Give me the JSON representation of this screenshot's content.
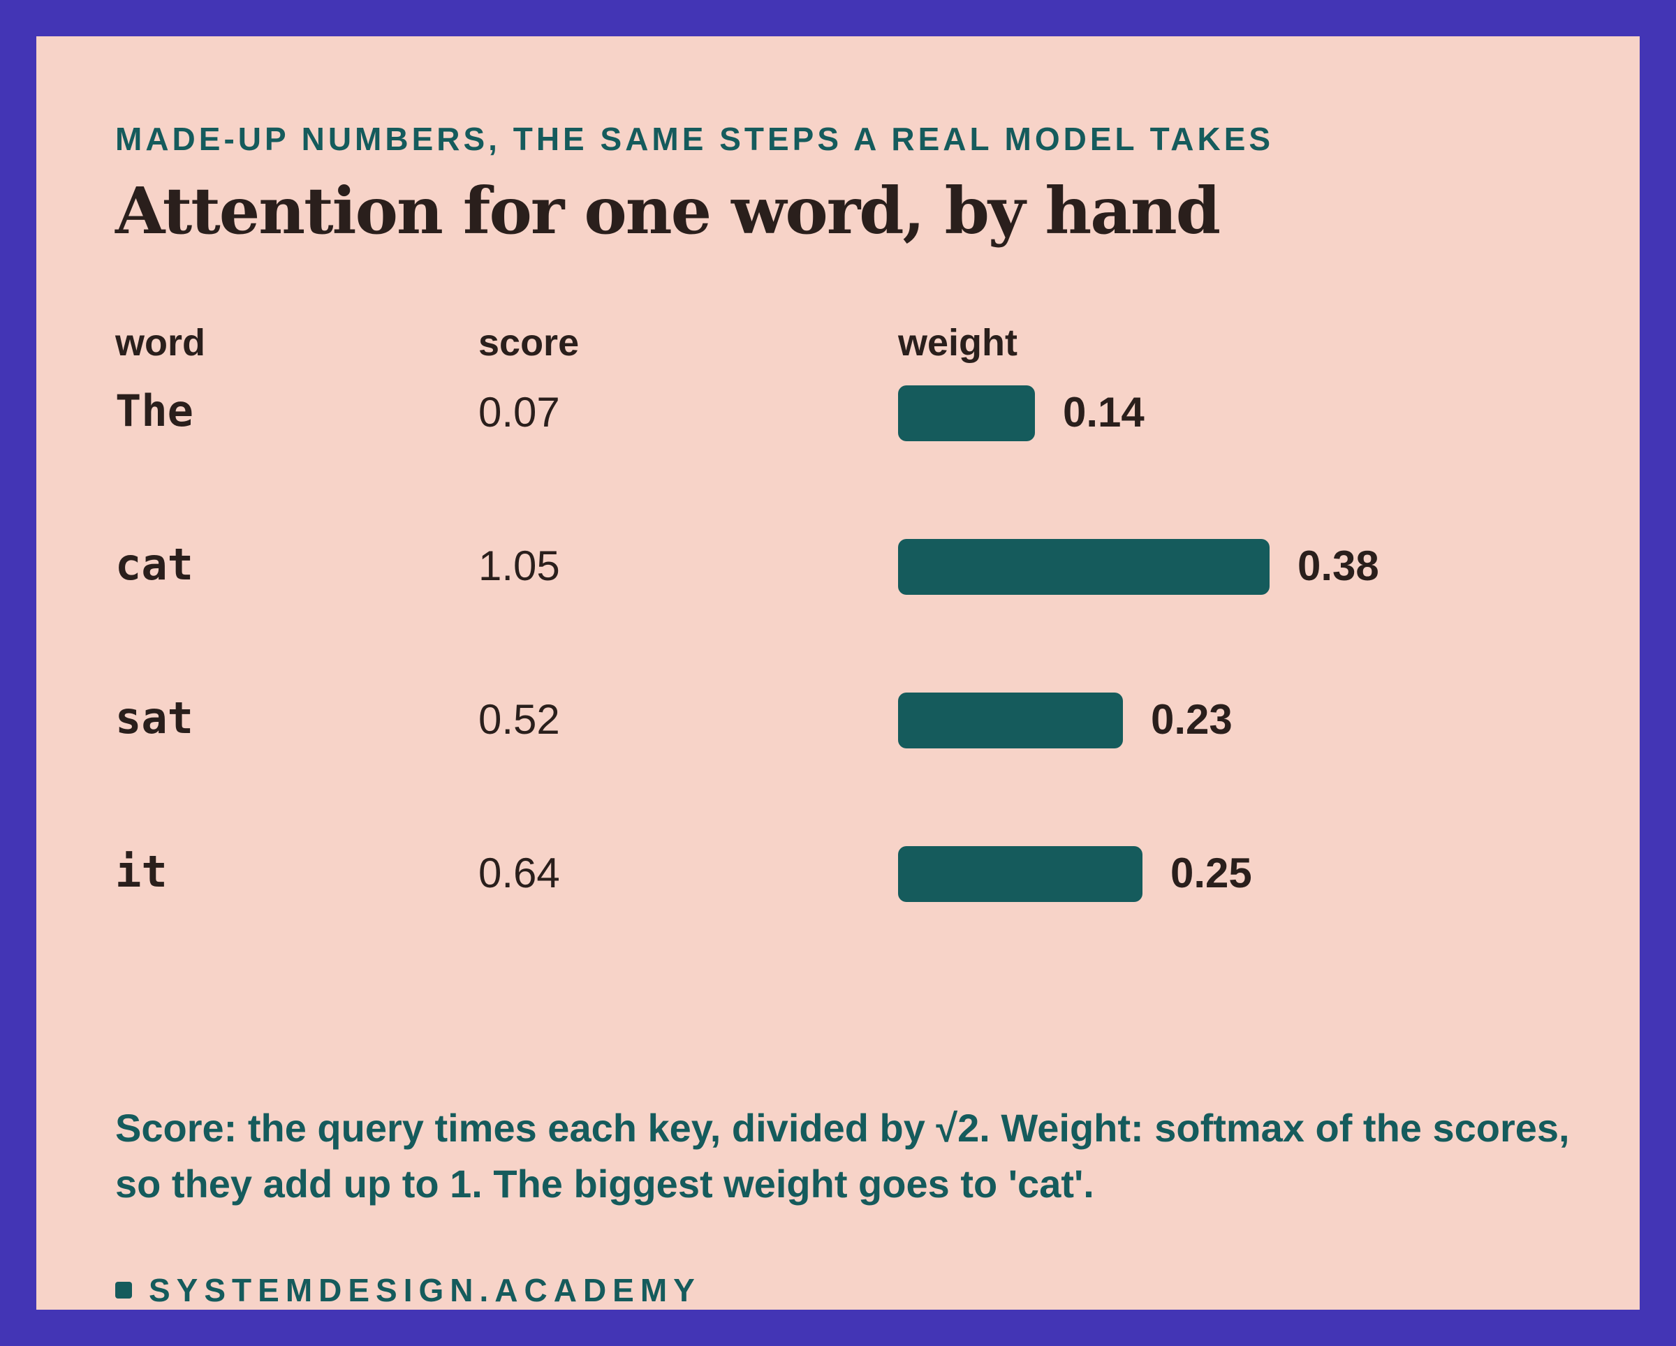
{
  "header": {
    "eyebrow": "MADE-UP NUMBERS, THE SAME STEPS A REAL MODEL TAKES",
    "title": "Attention for one word, by hand"
  },
  "chart_data": {
    "type": "bar",
    "title": "Attention for one word, by hand",
    "columns": [
      "word",
      "score",
      "weight"
    ],
    "categories": [
      "The",
      "cat",
      "sat",
      "it"
    ],
    "scores": [
      "0.07",
      "1.05",
      "0.52",
      "0.64"
    ],
    "values": [
      0.14,
      0.38,
      0.23,
      0.25
    ],
    "value_labels": [
      "0.14",
      "0.38",
      "0.23",
      "0.25"
    ],
    "orientation": "horizontal",
    "grid": false
  },
  "note": "Score: the query times each key, divided by √2. Weight: softmax of the scores, so they add up to 1. The biggest weight goes to 'cat'.",
  "footer": {
    "brand": "SYSTEMDESIGN.ACADEMY"
  },
  "colors": {
    "frame": "#4335b5",
    "background": "#f7d3c8",
    "accent": "#155b5c",
    "text": "#2a1f1c"
  }
}
